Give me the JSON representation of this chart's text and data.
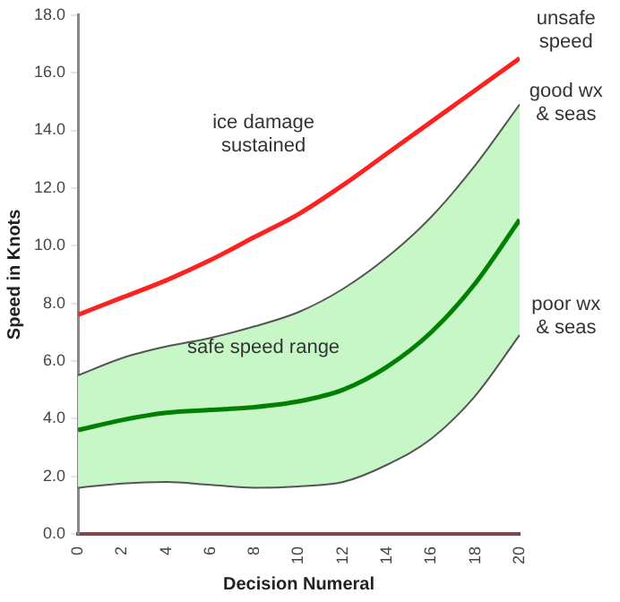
{
  "chart_data": {
    "type": "line",
    "xlabel": "Decision Numeral",
    "ylabel": "Speed in Knots",
    "x": [
      0,
      2,
      4,
      6,
      8,
      10,
      12,
      14,
      16,
      18,
      20
    ],
    "series": [
      {
        "color": "#ff2020",
        "values": [
          7.6,
          8.2,
          8.8,
          9.5,
          10.3,
          11.1,
          12.1,
          13.2,
          14.3,
          15.4,
          16.5
        ]
      },
      {
        "color": "#555555",
        "values": [
          1.6,
          1.75,
          1.8,
          1.7,
          1.6,
          1.65,
          1.8,
          2.4,
          3.3,
          4.8,
          6.9
        ]
      },
      {
        "color": "#555555",
        "values": [
          5.5,
          6.1,
          6.5,
          6.8,
          7.2,
          7.7,
          8.5,
          9.6,
          11.0,
          12.8,
          14.9
        ]
      },
      {
        "color": "#008000",
        "values": [
          3.6,
          3.95,
          4.2,
          4.3,
          4.4,
          4.6,
          5.0,
          5.8,
          7.0,
          8.7,
          10.9
        ],
        "lower": [
          1.6,
          1.75,
          1.8,
          1.7,
          1.6,
          1.65,
          1.8,
          2.4,
          3.3,
          4.8,
          6.9
        ],
        "upper": [
          5.5,
          6.1,
          6.5,
          6.8,
          7.2,
          7.7,
          8.5,
          9.6,
          11.0,
          12.8,
          14.9
        ]
      }
    ],
    "xlim": [
      0,
      20
    ],
    "xticks": [
      0,
      2,
      4,
      6,
      8,
      10,
      12,
      14,
      16,
      18,
      20
    ],
    "ylim": [
      0,
      18
    ],
    "yticks": [
      {
        "value": 0,
        "label": "0.0"
      },
      {
        "value": 2,
        "label": "2.0"
      },
      {
        "value": 4,
        "label": "4.0"
      },
      {
        "value": 6,
        "label": "6.0"
      },
      {
        "value": 8,
        "label": "8.0"
      },
      {
        "value": 10,
        "label": "10.0"
      },
      {
        "value": 12,
        "label": "12.0"
      },
      {
        "value": 14,
        "label": "14.0"
      },
      {
        "value": 16,
        "label": "16.0"
      },
      {
        "value": 18,
        "label": "18.0"
      }
    ],
    "annotations": [
      "ice damage\nsustained",
      "safe speed range",
      "unsafe\nspeed",
      "good wx\n& seas",
      "poor wx\n& seas"
    ],
    "grid": false,
    "legend": false,
    "marker": "none",
    "line_style": "solid"
  }
}
